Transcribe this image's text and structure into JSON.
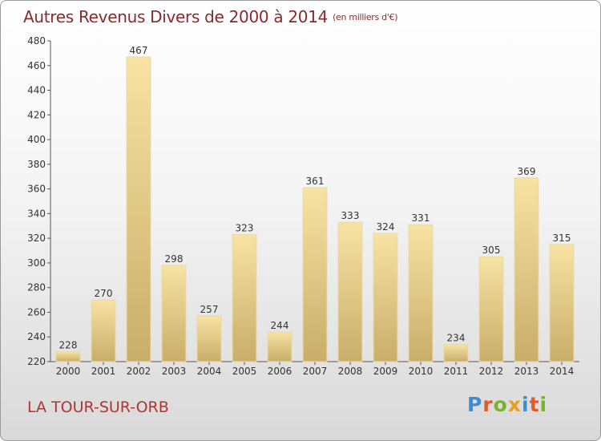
{
  "header": {
    "title": "Autres Revenus Divers de 2000 à 2014",
    "unit": "(en milliers d'€)"
  },
  "footer": {
    "city": "LA TOUR-SUR-ORB",
    "brand": "Proxiti"
  },
  "colors": {
    "title": "#8a2a2a",
    "city": "#b33232",
    "bar_light": "#f7e3a3",
    "bar_dark": "#c9ad6a",
    "brand_letters": [
      "#3a8fd0",
      "#e05a2a",
      "#78b42a",
      "#e8a020",
      "#3a8fd0",
      "#e05a2a",
      "#78b42a"
    ]
  },
  "chart_data": {
    "type": "bar",
    "title": "Autres Revenus Divers de 2000 à 2014",
    "categories": [
      "2000",
      "2001",
      "2002",
      "2003",
      "2004",
      "2005",
      "2006",
      "2007",
      "2008",
      "2009",
      "2010",
      "2011",
      "2012",
      "2013",
      "2014"
    ],
    "values": [
      228,
      270,
      467,
      298,
      257,
      323,
      244,
      361,
      333,
      324,
      331,
      234,
      305,
      369,
      315
    ],
    "ylim": [
      220,
      480
    ],
    "yticks": [
      220,
      240,
      260,
      280,
      300,
      320,
      340,
      360,
      380,
      400,
      420,
      440,
      460,
      480
    ],
    "grid": false
  }
}
